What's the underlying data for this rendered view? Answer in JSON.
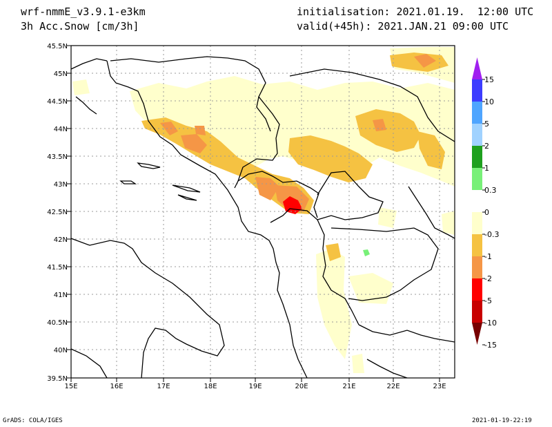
{
  "header": {
    "model": "wrf-nmmE_v3.9.1-e3km",
    "field": "3h Acc.Snow [cm/3h]",
    "init": "initialisation: 2021.01.19.  12:00 UTC",
    "valid": "valid(+45h): 2021.JAN.21 09:00 UTC"
  },
  "axes": {
    "lat_labels": [
      "45.5N",
      "45N",
      "44.5N",
      "44N",
      "43.5N",
      "43N",
      "42.5N",
      "42N",
      "41.5N",
      "41N",
      "40.5N",
      "40N",
      "39.5N"
    ],
    "lon_labels": [
      "15E",
      "16E",
      "17E",
      "18E",
      "19E",
      "20E",
      "21E",
      "22E",
      "23E"
    ]
  },
  "colorbar": {
    "labels": [
      "15",
      "10",
      "5",
      "2",
      "1",
      "0.3",
      "0",
      "-0.3",
      "-1",
      "-2",
      "-5",
      "-10",
      "-15"
    ],
    "colors": [
      "#a020f0",
      "#3c3cff",
      "#4fa5ff",
      "#a0d2ff",
      "#1ea01e",
      "#78f078",
      "#ffffff",
      "#ffffcc",
      "#f5c242",
      "#f59646",
      "#ff0000",
      "#c80000",
      "#780000"
    ]
  },
  "footer": {
    "left": "GrADS: COLA/IGES",
    "right": "2021-01-19-22:19"
  }
}
